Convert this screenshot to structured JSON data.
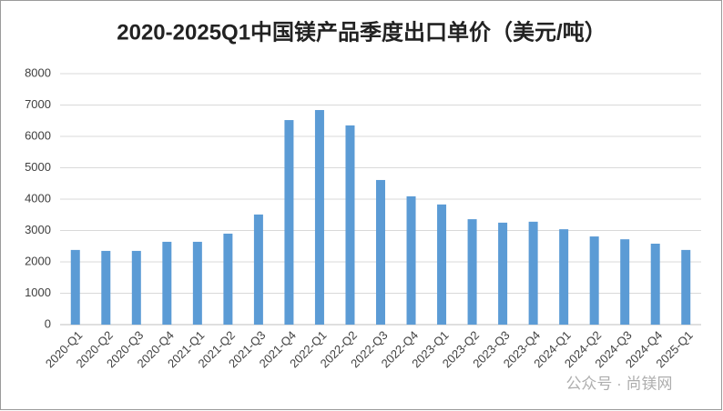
{
  "chart_data": {
    "type": "bar",
    "title": "2020-2025Q1中国镁产品季度出口单价（美元/吨）",
    "categories": [
      "2020-Q1",
      "2020-Q2",
      "2020-Q3",
      "2020-Q4",
      "2021-Q1",
      "2021-Q2",
      "2021-Q3",
      "2021-Q4",
      "2022-Q1",
      "2022-Q2",
      "2022-Q3",
      "2022-Q4",
      "2023-Q1",
      "2023-Q2",
      "2023-Q3",
      "2023-Q4",
      "2024-Q1",
      "2024-Q2",
      "2024-Q3",
      "2024-Q4",
      "2025-Q1"
    ],
    "values": [
      2380,
      2350,
      2350,
      2640,
      2640,
      2900,
      3510,
      6520,
      6840,
      6350,
      4610,
      4090,
      3830,
      3360,
      3250,
      3280,
      3040,
      2810,
      2720,
      2580,
      2380
    ],
    "color": "#5b9bd5",
    "ylim": [
      0,
      8000
    ],
    "yticks": [
      0,
      1000,
      2000,
      3000,
      4000,
      5000,
      6000,
      7000,
      8000
    ],
    "grid": true,
    "watermark": "公众号 · 尚镁网"
  }
}
